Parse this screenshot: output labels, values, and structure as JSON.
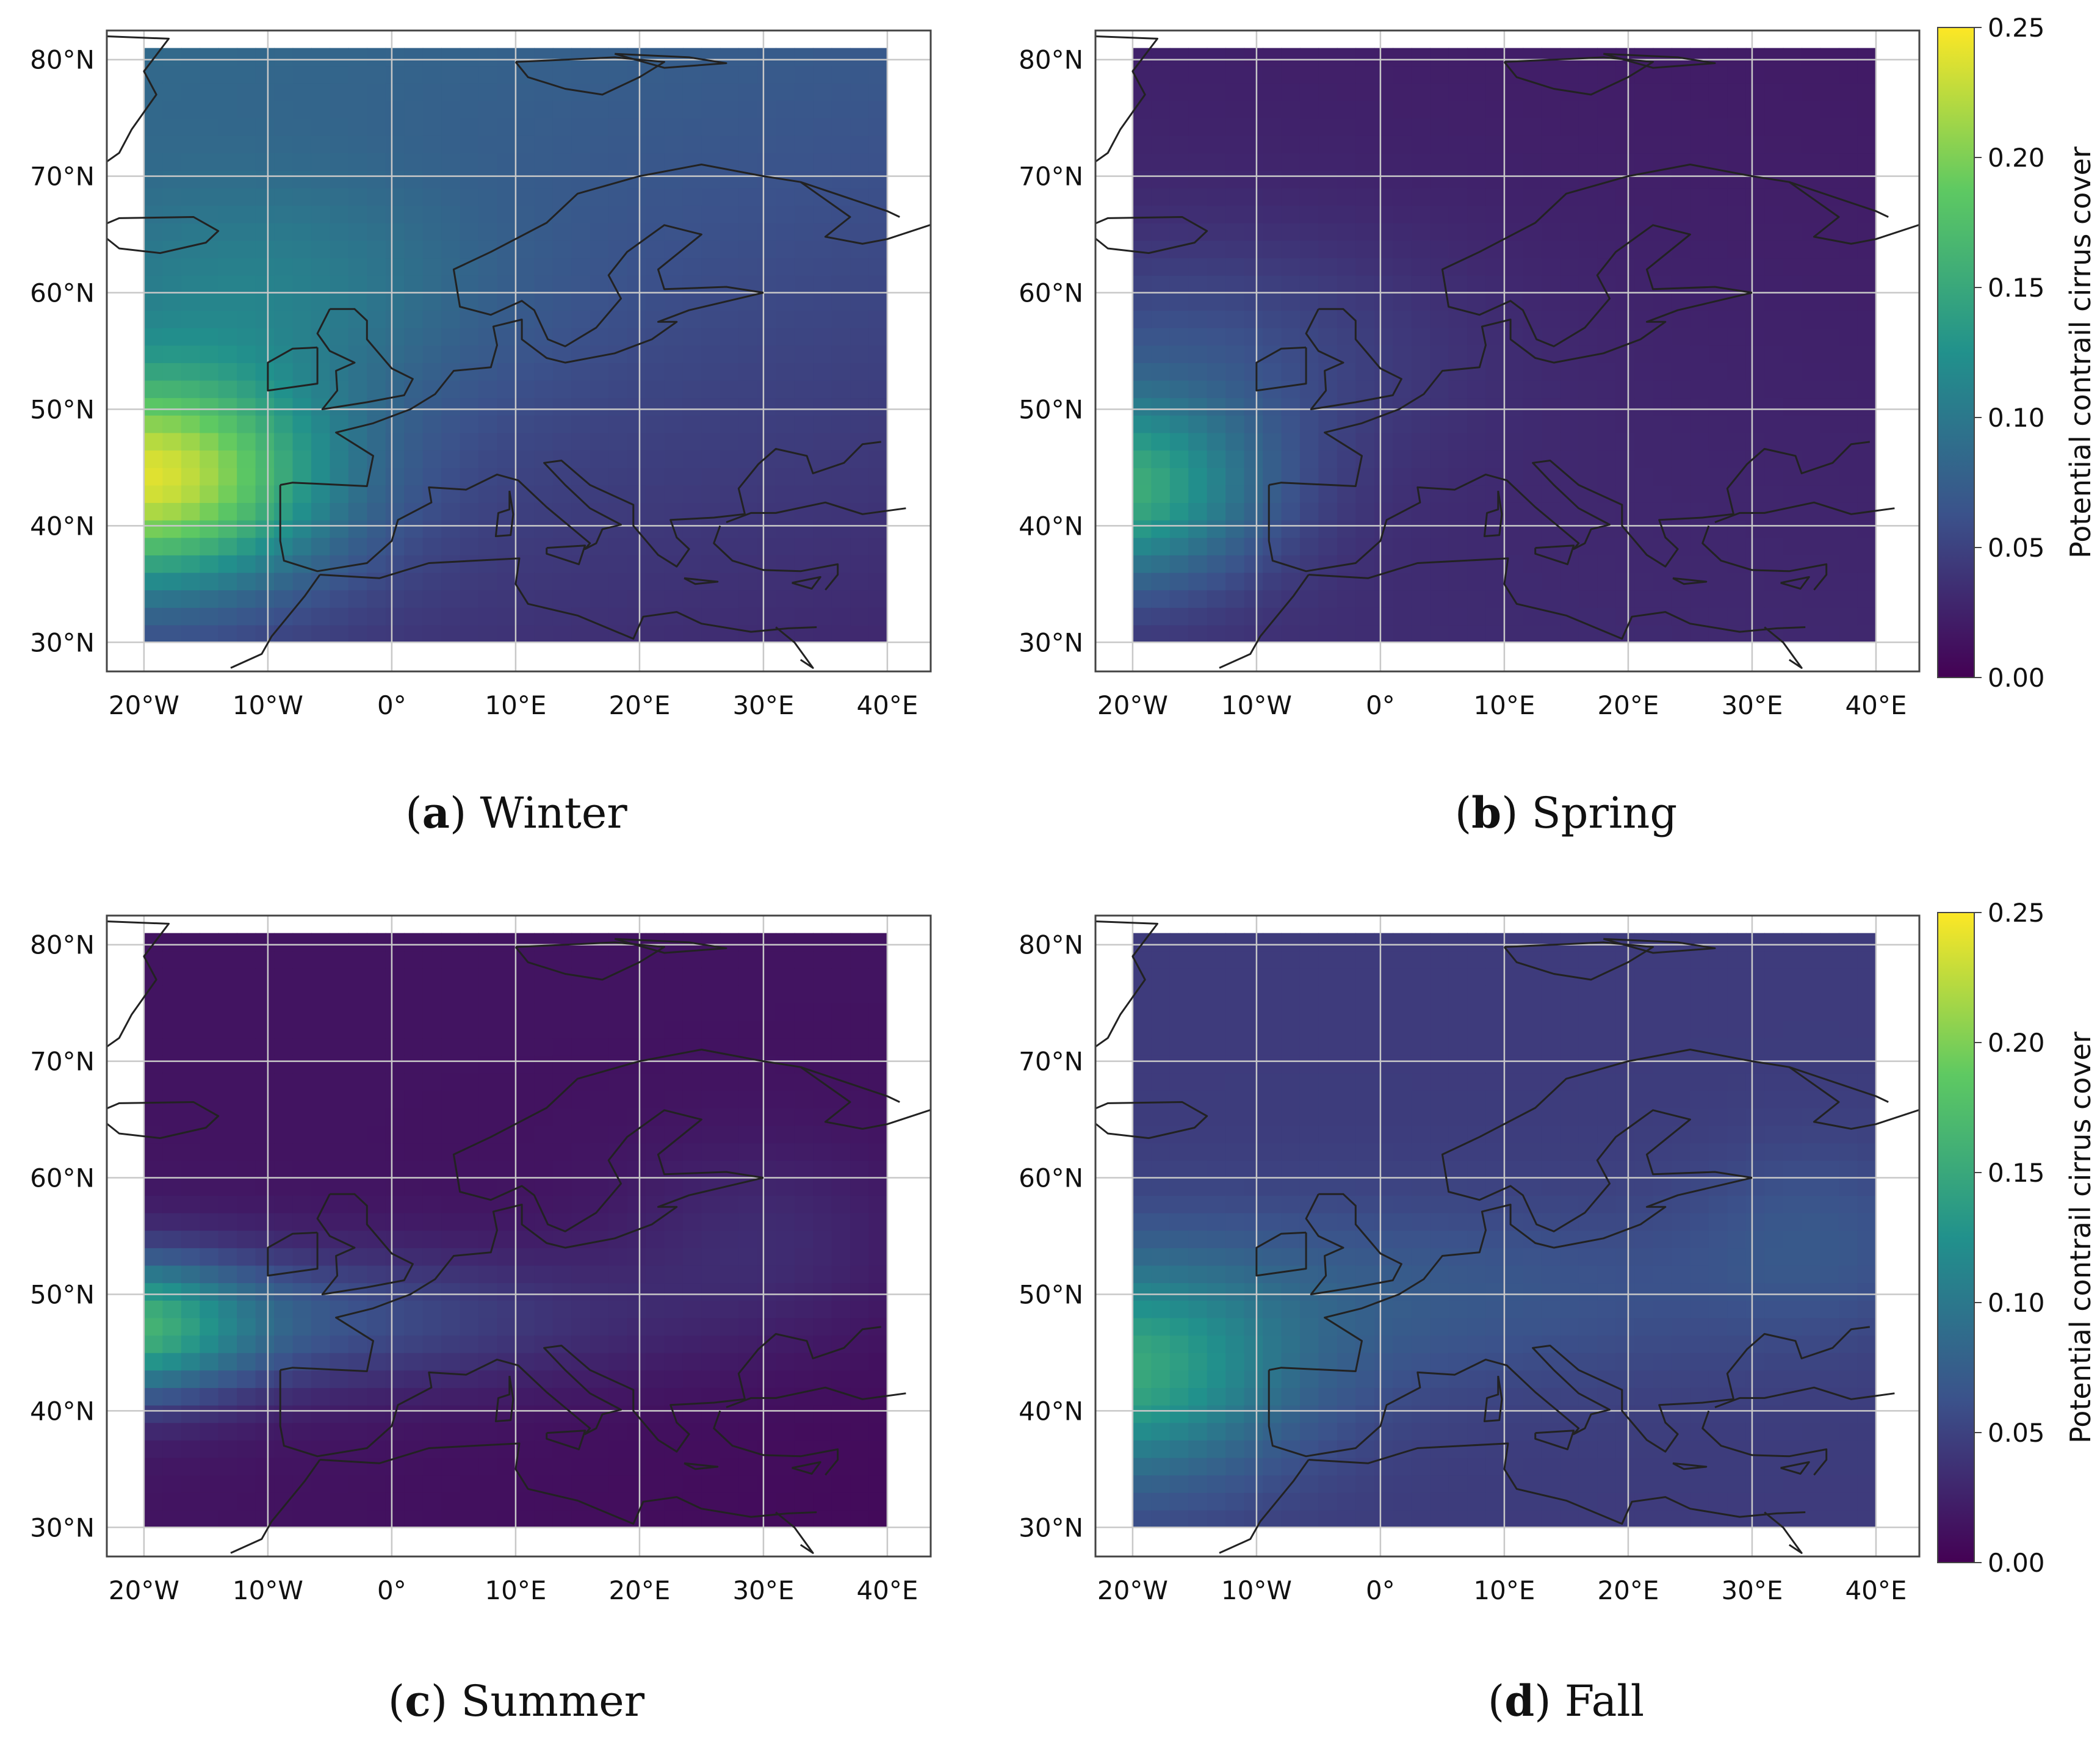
{
  "figure": {
    "panels": [
      {
        "letter": "a",
        "season": "Winter",
        "colorbar": false
      },
      {
        "letter": "b",
        "season": "Spring",
        "colorbar": true
      },
      {
        "letter": "c",
        "season": "Summer",
        "colorbar": false
      },
      {
        "letter": "d",
        "season": "Fall",
        "colorbar": true
      }
    ],
    "axes": {
      "lon_ticks": [
        "20°W",
        "10°W",
        "0°",
        "10°E",
        "20°E",
        "30°E",
        "40°E"
      ],
      "lat_ticks": [
        "80°N",
        "70°N",
        "60°N",
        "50°N",
        "40°N",
        "30°N"
      ]
    },
    "colorbar": {
      "label": "Potential contrail cirrus cover",
      "ticks": [
        "0.25",
        "0.20",
        "0.15",
        "0.10",
        "0.05",
        "0.00"
      ],
      "range": [
        0,
        0.25
      ],
      "colormap": "viridis"
    },
    "colors": {
      "coastline": "#222222",
      "grid": "#c8c8c8",
      "viridis_low": "#440154",
      "viridis_mid": "#21918c",
      "viridis_high": "#fde725"
    }
  },
  "chart_data": [
    {
      "type": "heatmap",
      "title": "Winter",
      "xlabel": "",
      "ylabel": "",
      "xlim": [
        -20,
        40
      ],
      "ylim": [
        30,
        80
      ],
      "colorbar_range": [
        0,
        0.25
      ],
      "approx_field": {
        "peak_value": 0.23,
        "peak_location": [
          -18,
          44
        ],
        "north_value": 0.08,
        "southeast_value": 0.03
      }
    },
    {
      "type": "heatmap",
      "title": "Spring",
      "xlabel": "",
      "ylabel": "",
      "xlim": [
        -20,
        40
      ],
      "ylim": [
        30,
        80
      ],
      "colorbar_range": [
        0,
        0.25
      ],
      "approx_field": {
        "peak_value": 0.17,
        "peak_location": [
          -20,
          43
        ],
        "north_value": 0.02,
        "southeast_value": 0.03
      }
    },
    {
      "type": "heatmap",
      "title": "Summer",
      "xlabel": "",
      "ylabel": "",
      "xlim": [
        -20,
        40
      ],
      "ylim": [
        30,
        80
      ],
      "colorbar_range": [
        0,
        0.25
      ],
      "approx_field": {
        "peak_value": 0.13,
        "peak_location": [
          -20,
          47
        ],
        "north_value": 0.02,
        "southeast_value": 0.01
      }
    },
    {
      "type": "heatmap",
      "title": "Fall",
      "xlabel": "",
      "ylabel": "",
      "xlim": [
        -20,
        40
      ],
      "ylim": [
        30,
        80
      ],
      "colorbar_range": [
        0,
        0.25
      ],
      "approx_field": {
        "peak_value": 0.16,
        "peak_location": [
          -20,
          43
        ],
        "north_value": 0.05,
        "southeast_value": 0.04
      }
    }
  ]
}
